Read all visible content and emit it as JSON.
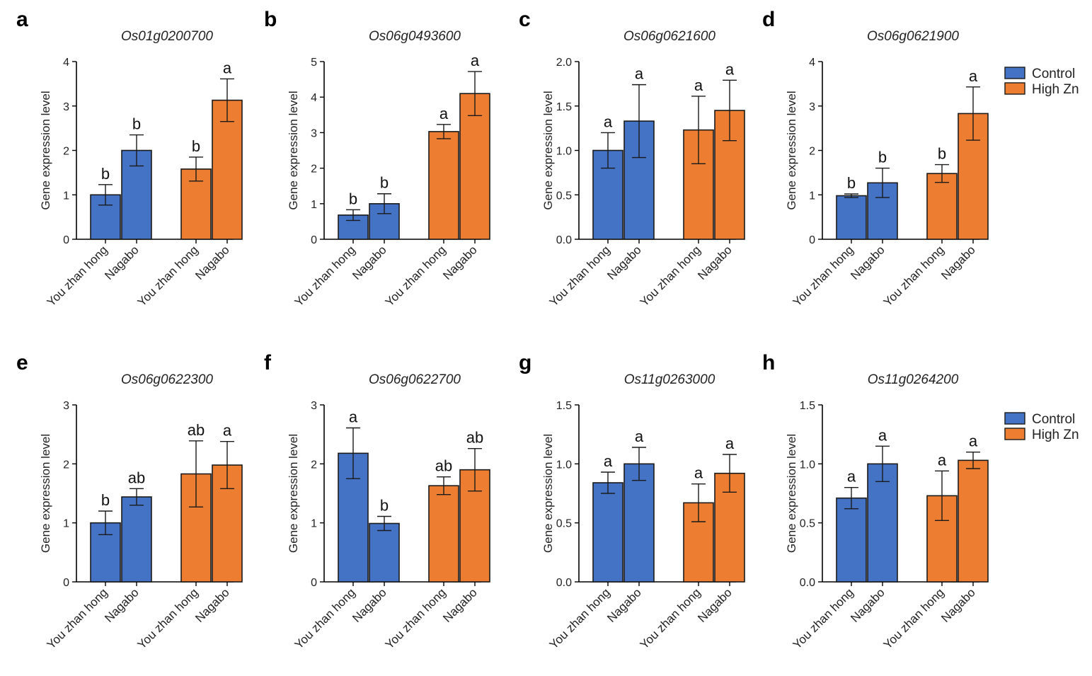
{
  "colors": {
    "control": "#4472C4",
    "high_zn": "#ED7D31",
    "axis": "#000000"
  },
  "legend": {
    "entries": [
      "Control",
      "High Zn"
    ]
  },
  "chart_data": [
    {
      "type": "bar",
      "panel": "a",
      "title": "Os01g0200700",
      "ylabel": "Gene expression level",
      "ylim": [
        0,
        4
      ],
      "yticks": [
        "0",
        "1",
        "2",
        "3",
        "4"
      ],
      "categories": [
        "You zhan hong",
        "Nagabo",
        "You zhan hong",
        "Nagabo"
      ],
      "groups": [
        "Control",
        "Control",
        "High Zn",
        "High Zn"
      ],
      "values": [
        1.0,
        2.0,
        1.58,
        3.13
      ],
      "errors": [
        0.23,
        0.35,
        0.27,
        0.48
      ],
      "letters": [
        "b",
        "b",
        "b",
        "a"
      ]
    },
    {
      "type": "bar",
      "panel": "b",
      "title": "Os06g0493600",
      "ylabel": "Gene expression level",
      "ylim": [
        0,
        5
      ],
      "yticks": [
        "0",
        "1",
        "2",
        "3",
        "4",
        "5"
      ],
      "categories": [
        "You zhan hong",
        "Nagabo",
        "You zhan hong",
        "Nagabo"
      ],
      "groups": [
        "Control",
        "Control",
        "High Zn",
        "High Zn"
      ],
      "values": [
        0.68,
        1.0,
        3.03,
        4.1
      ],
      "errors": [
        0.15,
        0.28,
        0.2,
        0.62
      ],
      "letters": [
        "b",
        "b",
        "a",
        "a"
      ]
    },
    {
      "type": "bar",
      "panel": "c",
      "title": "Os06g0621600",
      "ylabel": "Gene expression level",
      "ylim": [
        0,
        2
      ],
      "yticks": [
        "0.0",
        "0.5",
        "1.0",
        "1.5",
        "2.0"
      ],
      "categories": [
        "You zhan hong",
        "Nagabo",
        "You zhan hong",
        "Nagabo"
      ],
      "groups": [
        "Control",
        "Control",
        "High Zn",
        "High Zn"
      ],
      "values": [
        1.0,
        1.33,
        1.23,
        1.45
      ],
      "errors": [
        0.2,
        0.41,
        0.38,
        0.34
      ],
      "letters": [
        "a",
        "a",
        "a",
        "a"
      ]
    },
    {
      "type": "bar",
      "panel": "d",
      "title": "Os06g0621900",
      "ylabel": "Gene expression level",
      "ylim": [
        0,
        4
      ],
      "yticks": [
        "0",
        "1",
        "2",
        "3",
        "4"
      ],
      "categories": [
        "You zhan hong",
        "Nagabo",
        "You zhan hong",
        "Nagabo"
      ],
      "groups": [
        "Control",
        "Control",
        "High Zn",
        "High Zn"
      ],
      "values": [
        0.98,
        1.27,
        1.48,
        2.83
      ],
      "errors": [
        0.04,
        0.33,
        0.2,
        0.6
      ],
      "letters": [
        "b",
        "b",
        "b",
        "a"
      ]
    },
    {
      "type": "bar",
      "panel": "e",
      "title": "Os06g0622300",
      "ylabel": "Gene expression level",
      "ylim": [
        0,
        3
      ],
      "yticks": [
        "0",
        "1",
        "2",
        "3"
      ],
      "categories": [
        "You zhan hong",
        "Nagabo",
        "You zhan hong",
        "Nagabo"
      ],
      "groups": [
        "Control",
        "Control",
        "High Zn",
        "High Zn"
      ],
      "values": [
        1.0,
        1.44,
        1.83,
        1.98
      ],
      "errors": [
        0.2,
        0.14,
        0.56,
        0.4
      ],
      "letters": [
        "b",
        "ab",
        "ab",
        "a"
      ]
    },
    {
      "type": "bar",
      "panel": "f",
      "title": "Os06g0622700",
      "ylabel": "Gene expression level",
      "ylim": [
        0,
        3
      ],
      "yticks": [
        "0",
        "1",
        "2",
        "3"
      ],
      "categories": [
        "You zhan hong",
        "Nagabo",
        "You zhan hong",
        "Nagabo"
      ],
      "groups": [
        "Control",
        "Control",
        "High Zn",
        "High Zn"
      ],
      "values": [
        2.18,
        0.99,
        1.63,
        1.9
      ],
      "errors": [
        0.43,
        0.12,
        0.15,
        0.36
      ],
      "letters": [
        "a",
        "b",
        "ab",
        "ab"
      ]
    },
    {
      "type": "bar",
      "panel": "g",
      "title": "Os11g0263000",
      "ylabel": "Gene expression level",
      "ylim": [
        0,
        1.5
      ],
      "yticks": [
        "0.0",
        "0.5",
        "1.0",
        "1.5"
      ],
      "categories": [
        "You zhan hong",
        "Nagabo",
        "You zhan hong",
        "Nagabo"
      ],
      "groups": [
        "Control",
        "Control",
        "High Zn",
        "High Zn"
      ],
      "values": [
        0.84,
        1.0,
        0.67,
        0.92
      ],
      "errors": [
        0.09,
        0.14,
        0.16,
        0.16
      ],
      "letters": [
        "a",
        "a",
        "a",
        "a"
      ]
    },
    {
      "type": "bar",
      "panel": "h",
      "title": "Os11g0264200",
      "ylabel": "Gene expression level",
      "ylim": [
        0,
        1.5
      ],
      "yticks": [
        "0.0",
        "0.5",
        "1.0",
        "1.5"
      ],
      "categories": [
        "You zhan hong",
        "Nagabo",
        "You zhan hong",
        "Nagabo"
      ],
      "groups": [
        "Control",
        "Control",
        "High Zn",
        "High Zn"
      ],
      "values": [
        0.71,
        1.0,
        0.73,
        1.03
      ],
      "errors": [
        0.09,
        0.15,
        0.21,
        0.07
      ],
      "letters": [
        "a",
        "a",
        "a",
        "a"
      ]
    }
  ]
}
